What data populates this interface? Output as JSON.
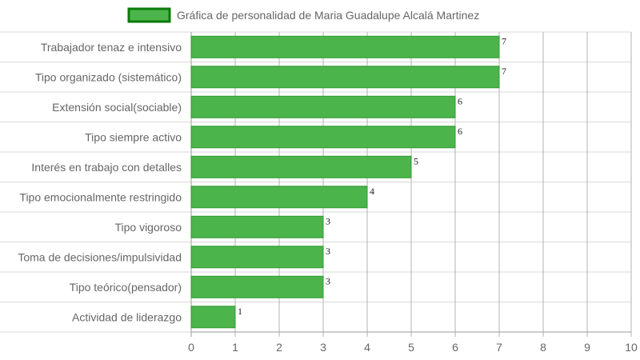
{
  "chart_data": {
    "type": "bar",
    "orientation": "horizontal",
    "categories": [
      "Trabajador tenaz e intensivo",
      "Tipo organizado (sistemático)",
      "Extensión social(sociable)",
      "Tipo siempre activo",
      "Interés en trabajo con detalles",
      "Tipo emocionalmente restringido",
      "Tipo vigoroso",
      "Toma de decisiones/impulsividad",
      "Tipo teórico(pensador)",
      "Actividad de liderazgo"
    ],
    "series": [
      {
        "name": "Gráfica de personalidad de Maria Guadalupe Alcalá Martinez",
        "values": [
          7,
          7,
          6,
          6,
          5,
          4,
          3,
          3,
          3,
          1
        ]
      }
    ],
    "data_labels": [
      "7",
      "7",
      "6",
      "6",
      "5",
      "4",
      "3",
      "3",
      "3",
      "1"
    ],
    "xlim": [
      0,
      10
    ],
    "x_ticks": [
      "0",
      "1",
      "2",
      "3",
      "4",
      "5",
      "6",
      "7",
      "8",
      "9",
      "10"
    ],
    "title": "",
    "xlabel": "",
    "ylabel": "",
    "grid": true,
    "legend_position": "top-center"
  },
  "colors": {
    "bar_fill": "#4bb54b",
    "bar_border": "#2f9a2f",
    "legend_fill": "#4bb54b",
    "legend_border": "#0a7a0a",
    "grid_line": "#d9d9d9",
    "axis_line": "#9a9a9a",
    "text": "#666666",
    "data_label": "#222222"
  }
}
